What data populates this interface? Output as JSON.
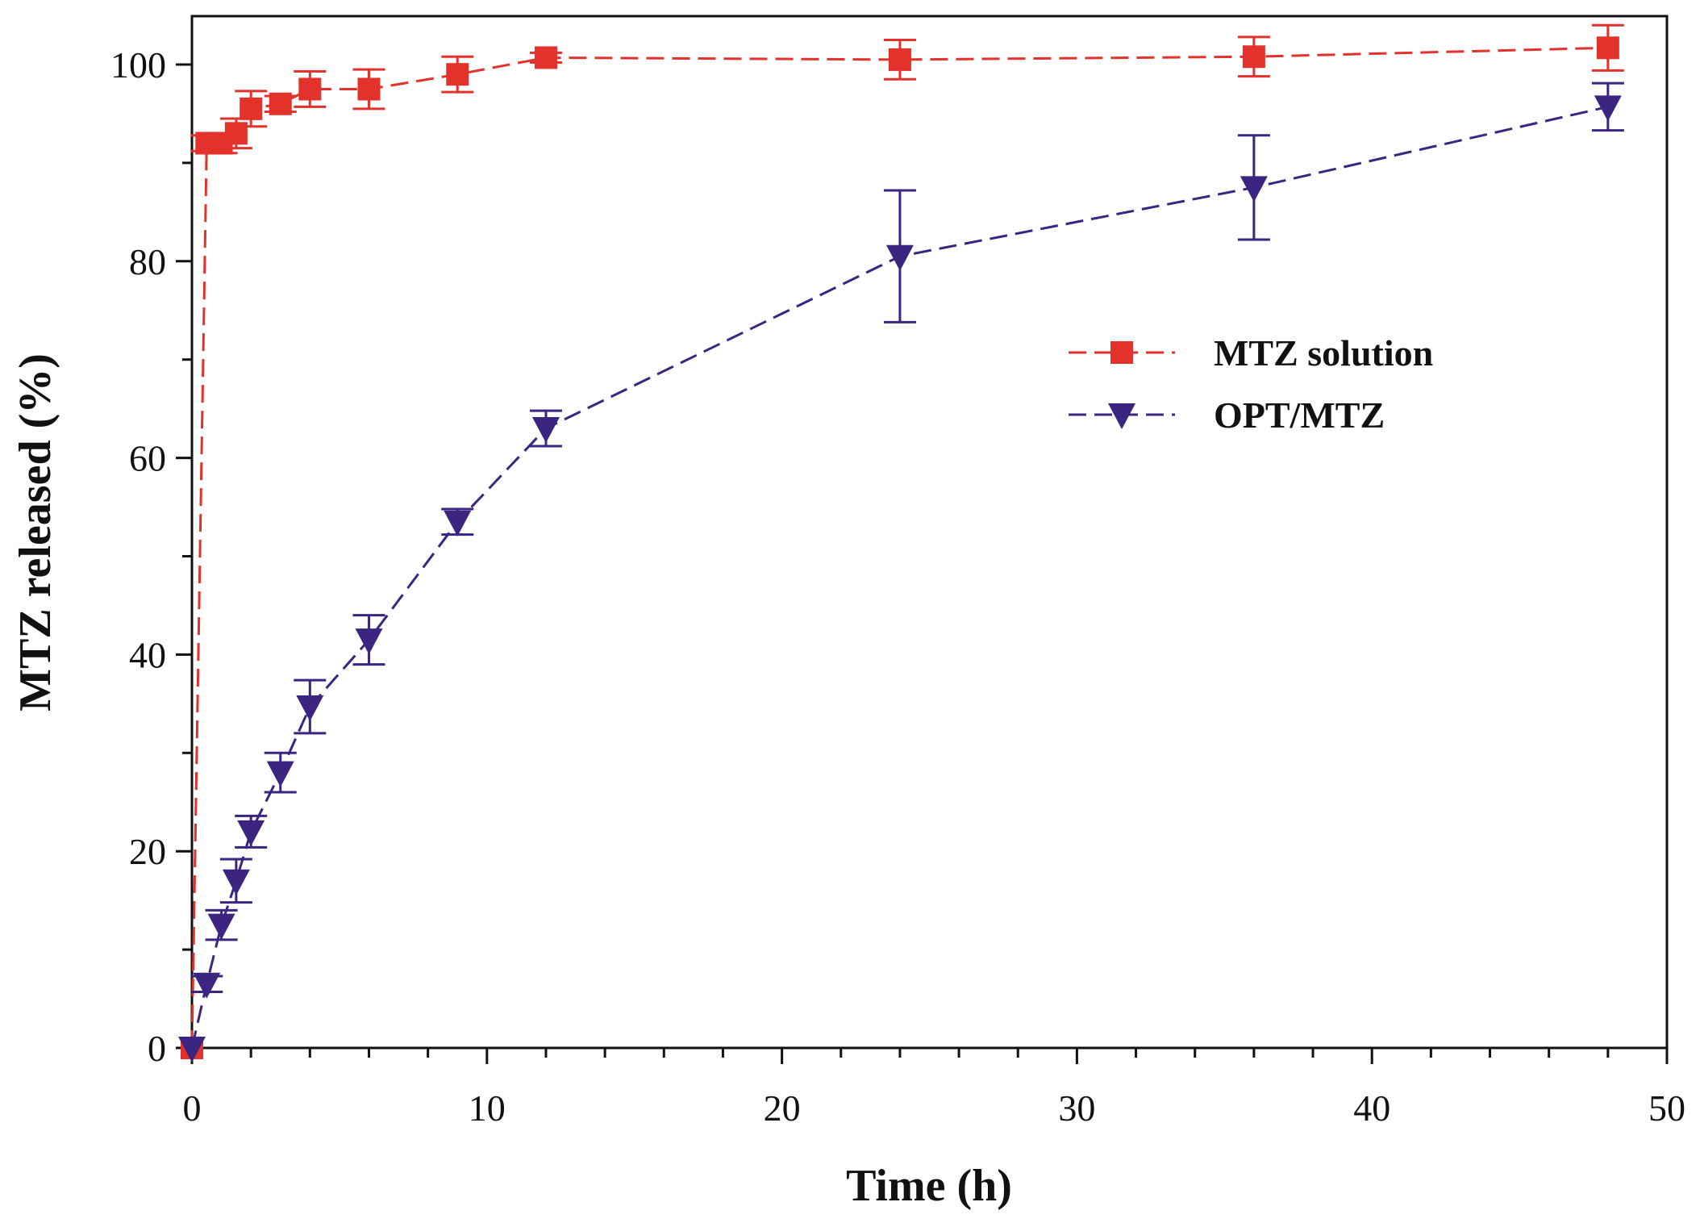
{
  "chart_data": {
    "type": "line",
    "title": "",
    "xlabel": "Time (h)",
    "ylabel": "MTZ released (%)",
    "xlim": [
      0,
      50
    ],
    "ylim": [
      0,
      105
    ],
    "xticks": [
      0,
      10,
      20,
      30,
      40,
      50
    ],
    "yticks": [
      0,
      20,
      40,
      60,
      80,
      100
    ],
    "grid": false,
    "legend_position": "center-right",
    "x": [
      0,
      0.5,
      1,
      1.5,
      2,
      3,
      4,
      6,
      9,
      12,
      24,
      36,
      48
    ],
    "series": [
      {
        "name": "MTZ solution",
        "color": "#e3312c",
        "marker": "square",
        "values": [
          0,
          92,
          92,
          93,
          95.5,
          96,
          97.5,
          97.5,
          99,
          100.7,
          100.5,
          100.8,
          101.7
        ],
        "errors": [
          0,
          0.8,
          1,
          1.5,
          1.8,
          0.8,
          1.8,
          2,
          1.8,
          0.5,
          2,
          2,
          2.3
        ]
      },
      {
        "name": "OPT/MTZ",
        "color": "#3b2580",
        "marker": "triangle-down",
        "values": [
          0,
          6.5,
          12.5,
          17,
          22,
          28,
          34.7,
          41.5,
          53.5,
          63,
          80.5,
          87.5,
          95.7
        ],
        "errors": [
          0,
          0.8,
          1.5,
          2.2,
          1.6,
          2,
          2.7,
          2.5,
          1.3,
          1.8,
          6.7,
          5.3,
          2.4
        ]
      }
    ]
  }
}
